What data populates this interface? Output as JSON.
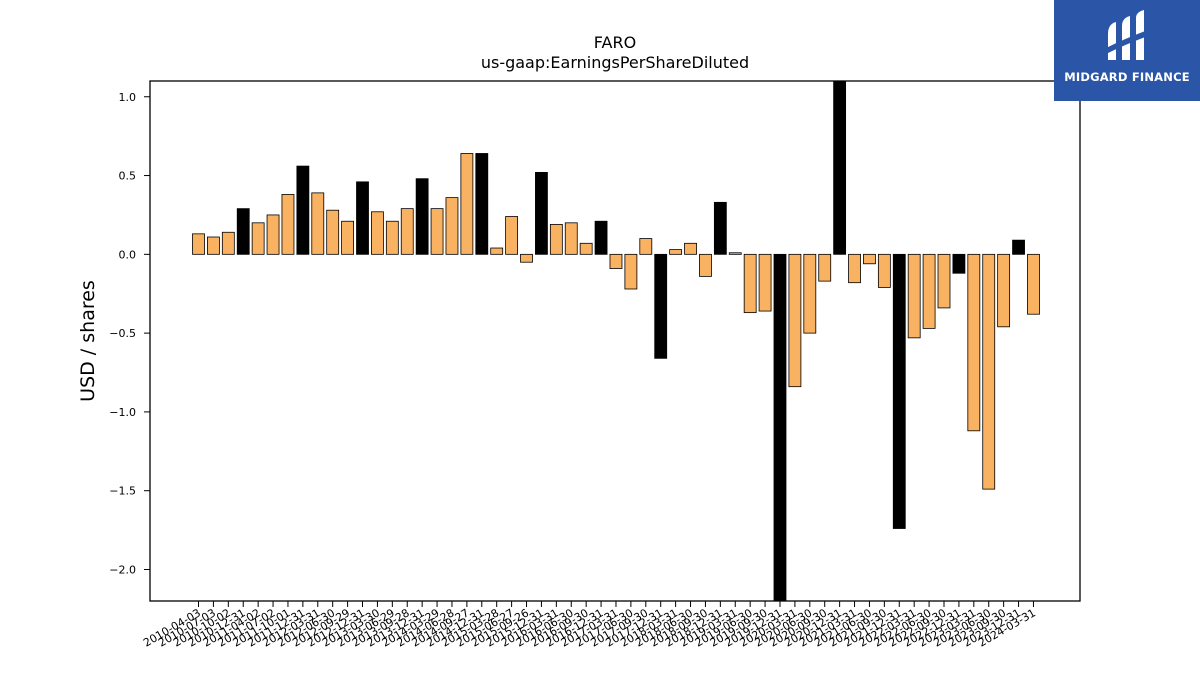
{
  "brand": {
    "name": "MIDGARD FINANCE",
    "bg_color": "#2b56a8"
  },
  "colors": {
    "annual": "#000000",
    "quarterly": "#f9b262",
    "edge": "#000000"
  },
  "chart_data": {
    "type": "bar",
    "title": "FARO",
    "subtitle": "us-gaap:EarningsPerShareDiluted",
    "xlabel": "",
    "ylabel": "USD / shares",
    "ylim": [
      -2.2,
      1.1
    ],
    "yticks": [
      1.0,
      0.5,
      0.0,
      -0.5,
      -1.0,
      -1.5,
      -2.0
    ],
    "ytick_labels": [
      "1.0",
      "0.5",
      "0.0",
      "−0.5",
      "−1.0",
      "−1.5",
      "−2.0"
    ],
    "grid": false,
    "categories": [
      "2010-04-03",
      "2010-07-03",
      "2010-10-02",
      "2010-12-31",
      "2011-04-02",
      "2011-07-02",
      "2011-10-01",
      "2011-12-31",
      "2012-03-31",
      "2012-06-30",
      "2012-09-29",
      "2012-12-31",
      "2013-03-30",
      "2013-06-29",
      "2013-09-28",
      "2013-12-31",
      "2014-03-29",
      "2014-06-28",
      "2014-09-27",
      "2014-12-31",
      "2015-03-28",
      "2015-06-27",
      "2015-09-26",
      "2015-12-31",
      "2016-03-31",
      "2016-06-30",
      "2016-09-30",
      "2016-12-31",
      "2017-03-31",
      "2017-06-30",
      "2017-09-30",
      "2017-12-31",
      "2018-03-31",
      "2018-06-30",
      "2018-09-30",
      "2018-12-31",
      "2019-03-31",
      "2019-06-30",
      "2019-09-30",
      "2019-12-31",
      "2020-03-31",
      "2020-06-30",
      "2020-09-30",
      "2020-12-31",
      "2021-03-31",
      "2021-06-30",
      "2021-09-30",
      "2021-12-31",
      "2022-03-31",
      "2022-06-30",
      "2022-09-30",
      "2022-12-31",
      "2023-03-31",
      "2023-06-30",
      "2023-09-30",
      "2023-12-31",
      "2024-03-31"
    ],
    "values": [
      0.13,
      0.11,
      0.14,
      0.29,
      0.2,
      0.25,
      0.38,
      0.56,
      0.39,
      0.28,
      0.21,
      0.46,
      0.27,
      0.21,
      0.29,
      0.48,
      0.29,
      0.36,
      0.64,
      0.64,
      0.04,
      0.24,
      -0.05,
      0.52,
      0.19,
      0.2,
      0.07,
      0.21,
      -0.09,
      -0.22,
      0.1,
      -0.66,
      0.03,
      0.07,
      -0.14,
      0.33,
      0.01,
      -0.37,
      -0.36,
      -2.25,
      -0.84,
      -0.5,
      -0.17,
      1.15,
      -0.18,
      -0.06,
      -0.21,
      -1.74,
      -0.53,
      -0.47,
      -0.34,
      -0.12,
      -1.12,
      -1.49,
      -0.46,
      0.09,
      -0.38
    ],
    "annual": [
      false,
      false,
      false,
      true,
      false,
      false,
      false,
      true,
      false,
      false,
      false,
      true,
      false,
      false,
      false,
      true,
      false,
      false,
      false,
      true,
      false,
      false,
      false,
      true,
      false,
      false,
      false,
      true,
      false,
      false,
      false,
      true,
      false,
      false,
      false,
      true,
      false,
      false,
      false,
      true,
      false,
      false,
      false,
      true,
      false,
      false,
      false,
      true,
      false,
      false,
      false,
      true,
      false,
      false,
      false,
      true,
      false
    ]
  }
}
